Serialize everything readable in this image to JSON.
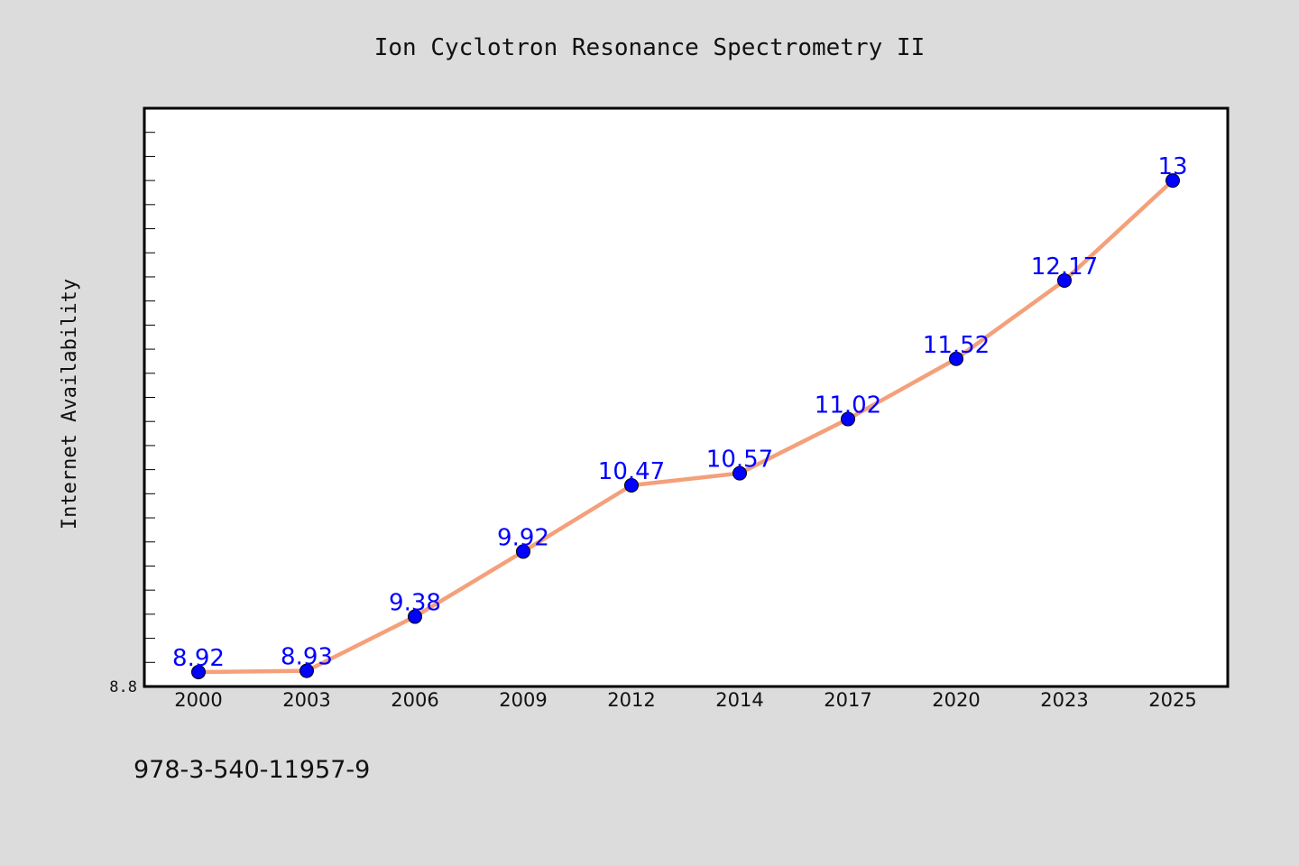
{
  "chart_data": {
    "type": "line",
    "title": "Ion Cyclotron Resonance Spectrometry II",
    "xlabel": "",
    "ylabel": "Internet Availability",
    "categories": [
      "2000",
      "2003",
      "2006",
      "2009",
      "2012",
      "2014",
      "2017",
      "2020",
      "2023",
      "2025"
    ],
    "series": [
      {
        "values": [
          8.92,
          8.93,
          9.38,
          9.92,
          10.47,
          10.57,
          11.02,
          11.52,
          12.17,
          13
        ]
      }
    ],
    "data_labels": [
      "8.92",
      "8.93",
      "9.38",
      "9.92",
      "10.47",
      "10.57",
      "11.02",
      "11.52",
      "12.17",
      "13"
    ],
    "ylim": [
      8.8,
      13.6
    ],
    "ytick_labels": [
      "8.8"
    ],
    "grid": false,
    "colors": {
      "line": "#f4a07a",
      "marker": "#0000ff",
      "label": "#0000ff",
      "background": "#dcdcdc",
      "plot": "#ffffff"
    }
  },
  "footer": {
    "code": "978-3-540-11957-9"
  }
}
